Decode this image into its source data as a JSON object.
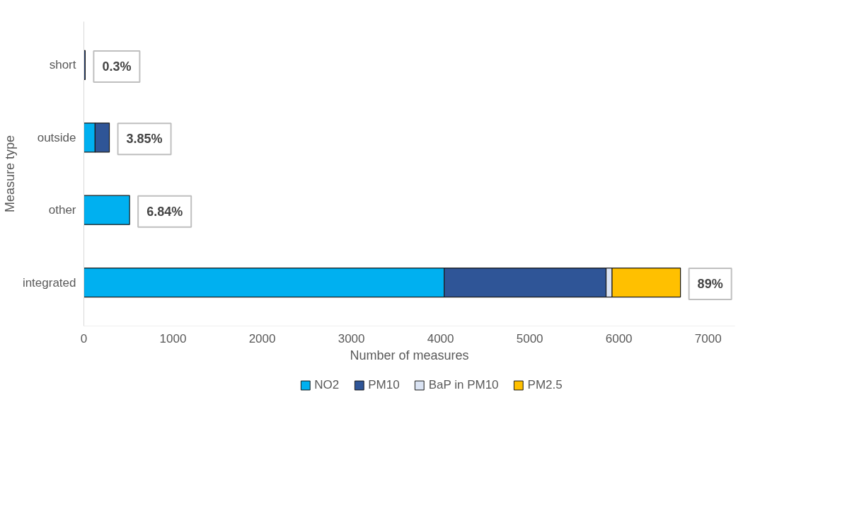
{
  "chart_data": {
    "type": "bar",
    "orientation": "horizontal",
    "stacked": true,
    "xlabel": "Number of measures",
    "ylabel": "Measure type",
    "categories": [
      "short",
      "outside",
      "other",
      "integrated"
    ],
    "series": [
      {
        "name": "NO2",
        "color": "#00b0f0",
        "values": [
          0,
          126,
          513,
          4040
        ]
      },
      {
        "name": "PM10",
        "color": "#2f5597",
        "values": [
          15,
          160,
          0,
          1816
        ]
      },
      {
        "name": "BaP in PM10",
        "color": "#dae3f3",
        "values": [
          0,
          0,
          0,
          67
        ]
      },
      {
        "name": "PM2.5",
        "color": "#ffc000",
        "values": [
          0,
          0,
          0,
          767
        ]
      }
    ],
    "xlim": [
      0,
      7300
    ],
    "xticks": [
      0,
      1000,
      2000,
      3000,
      4000,
      5000,
      6000,
      7000
    ],
    "annotations": [
      {
        "text": "0.3%",
        "x": 15,
        "y": "short"
      },
      {
        "text": "3.85%",
        "x": 286,
        "y": "outside"
      },
      {
        "text": "6.84%",
        "x": 513,
        "y": "other"
      },
      {
        "text": "89%",
        "x": 6690,
        "y": "integrated"
      }
    ],
    "grid": false,
    "legend": "bottom"
  }
}
